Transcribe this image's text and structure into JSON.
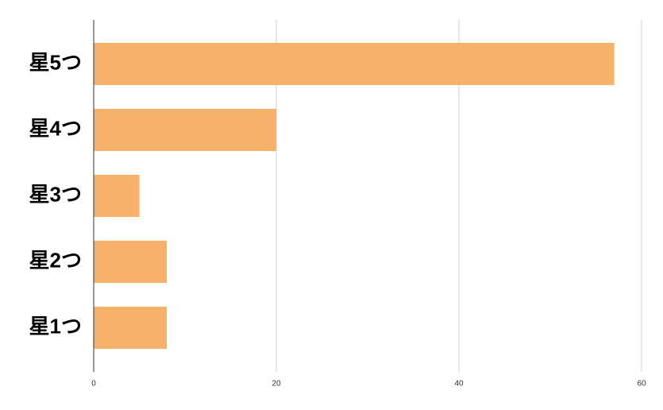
{
  "chart_data": {
    "type": "bar",
    "orientation": "horizontal",
    "categories": [
      "星5つ",
      "星4つ",
      "星3つ",
      "星2つ",
      "星1つ"
    ],
    "values": [
      57,
      20,
      5,
      8,
      8
    ],
    "color": "#f6b26b",
    "xlim": [
      0,
      60
    ],
    "xticks": [
      0,
      20,
      40,
      60
    ],
    "grid": true
  }
}
